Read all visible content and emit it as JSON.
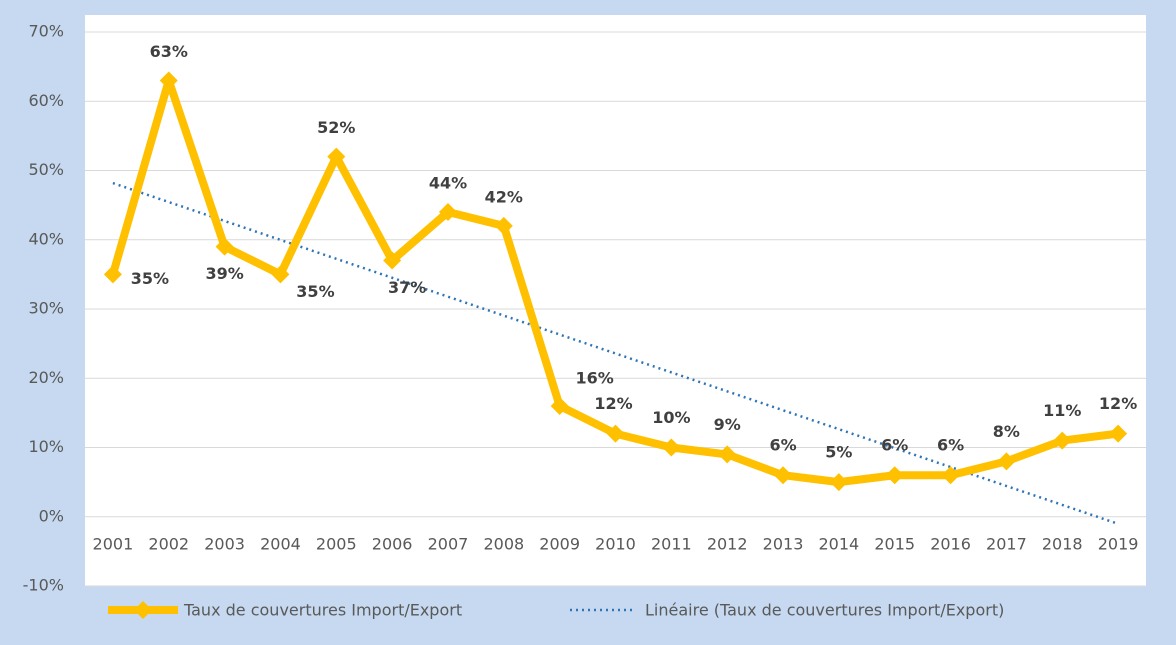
{
  "chart_data": {
    "type": "line",
    "categories": [
      "2001",
      "2002",
      "2003",
      "2004",
      "2005",
      "2006",
      "2007",
      "2008",
      "2009",
      "2010",
      "2011",
      "2012",
      "2013",
      "2014",
      "2015",
      "2016",
      "2017",
      "2018",
      "2019"
    ],
    "series": [
      {
        "name": "Taux de couvertures Import/Export",
        "color": "#ffc000",
        "values": [
          35,
          63,
          39,
          35,
          52,
          37,
          44,
          42,
          16,
          12,
          10,
          9,
          6,
          5,
          6,
          6,
          8,
          11,
          12
        ],
        "value_labels": [
          "35%",
          "63%",
          "39%",
          "35%",
          "52%",
          "37%",
          "44%",
          "42%",
          "16%",
          "12%",
          "10%",
          "9%",
          "6%",
          "5%",
          "6%",
          "6%",
          "8%",
          "11%",
          "12%"
        ]
      }
    ],
    "trendline": {
      "name": "Linéaire (Taux de couvertures Import/Export)",
      "color": "#2e75b6"
    },
    "ylim": [
      -10,
      70
    ],
    "yticks": [
      {
        "value": -10,
        "label": "-10%"
      },
      {
        "value": 0,
        "label": "0%"
      },
      {
        "value": 10,
        "label": "10%"
      },
      {
        "value": 20,
        "label": "20%"
      },
      {
        "value": 30,
        "label": "30%"
      },
      {
        "value": 40,
        "label": "40%"
      },
      {
        "value": 50,
        "label": "50%"
      },
      {
        "value": 60,
        "label": "60%"
      },
      {
        "value": 70,
        "label": "70%"
      }
    ],
    "grid": true,
    "legend": "bottom"
  }
}
